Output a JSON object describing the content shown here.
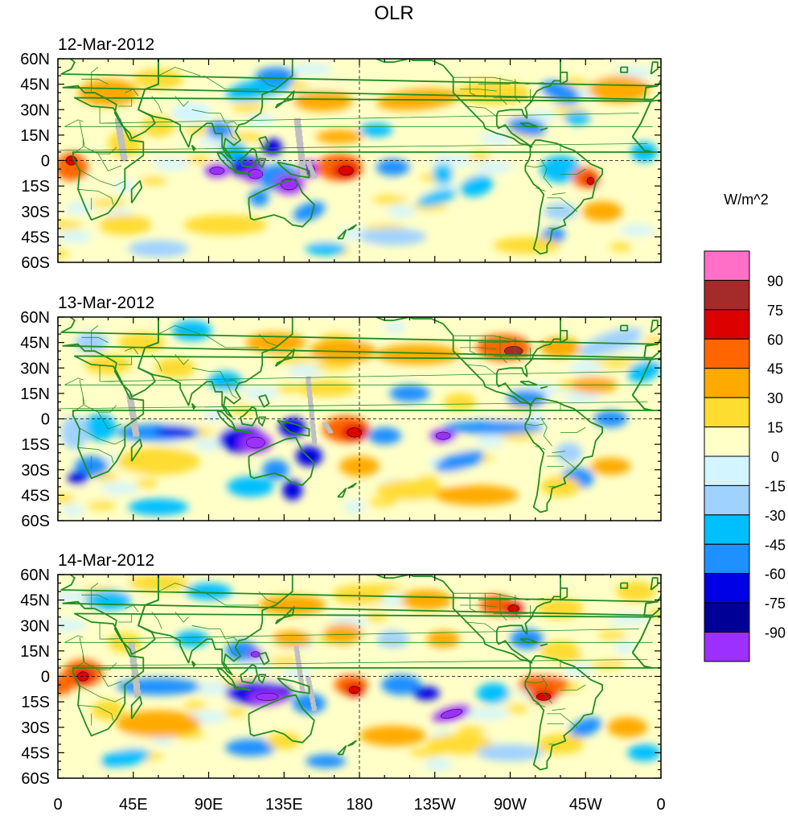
{
  "title": "OLR",
  "units_label": "W/m^2",
  "panels": [
    {
      "date": "12-Mar-2012"
    },
    {
      "date": "13-Mar-2012"
    },
    {
      "date": "14-Mar-2012"
    }
  ],
  "lat_labels": [
    "60N",
    "45N",
    "30N",
    "15N",
    "0",
    "15S",
    "30S",
    "45S",
    "60S"
  ],
  "lon_labels": [
    "0",
    "45E",
    "90E",
    "135E",
    "180",
    "135W",
    "90W",
    "45W",
    "0"
  ],
  "colorbar": {
    "labels": [
      "90",
      "75",
      "60",
      "45",
      "30",
      "15",
      "0",
      "-15",
      "-30",
      "-45",
      "-60",
      "-75",
      "-90"
    ],
    "colors": [
      "#ff6ec7",
      "#a52a2a",
      "#dd0000",
      "#ff6600",
      "#ffaa00",
      "#ffdc30",
      "#ffffc8",
      "#d2f5ff",
      "#a0d2ff",
      "#00bfff",
      "#1e90ff",
      "#0000e6",
      "#000096",
      "#9b30ff"
    ]
  },
  "colors": {
    "coast": "#228B22",
    "missing": "#c0c0c0"
  }
}
